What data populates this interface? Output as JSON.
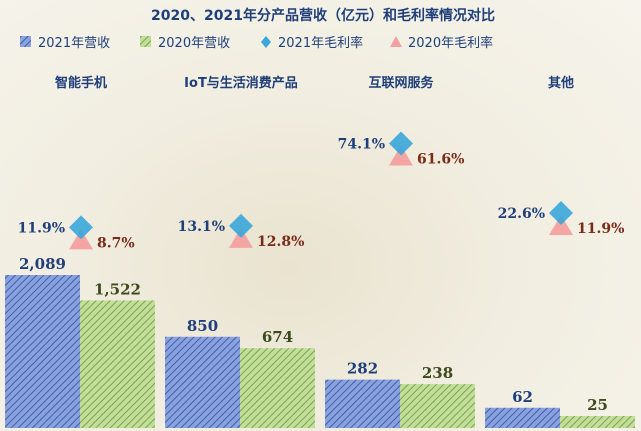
{
  "chart_data": {
    "type": "bar",
    "title": "2020、2021年分产品营收（亿元）和毛利率情况对比",
    "categories": [
      "智能手机",
      "IoT与生活消费产品",
      "互联网服务",
      "其他"
    ],
    "series": [
      {
        "name": "2021年营收",
        "values": [
          2089,
          850,
          282,
          62
        ],
        "labels": [
          "2,089",
          "850",
          "282",
          "62"
        ],
        "color": "#5a7cc9"
      },
      {
        "name": "2020年营收",
        "values": [
          1522,
          674,
          238,
          25
        ],
        "labels": [
          "1,522",
          "674",
          "238",
          "25"
        ],
        "color": "#9cc06a"
      }
    ],
    "margins": [
      {
        "name": "2021年毛利率",
        "values": [
          11.9,
          13.1,
          74.1,
          22.6
        ],
        "labels": [
          "11.9%",
          "13.1%",
          "74.1%",
          "22.6%"
        ],
        "color": "#3aa6d9",
        "marker": "diamond"
      },
      {
        "name": "2020年毛利率",
        "values": [
          8.7,
          12.8,
          61.6,
          11.9
        ],
        "labels": [
          "8.7%",
          "12.8%",
          "61.6%",
          "11.9%"
        ],
        "color": "#f4a0a0",
        "marker": "triangle"
      }
    ],
    "legend_position": "top",
    "grid": false
  }
}
